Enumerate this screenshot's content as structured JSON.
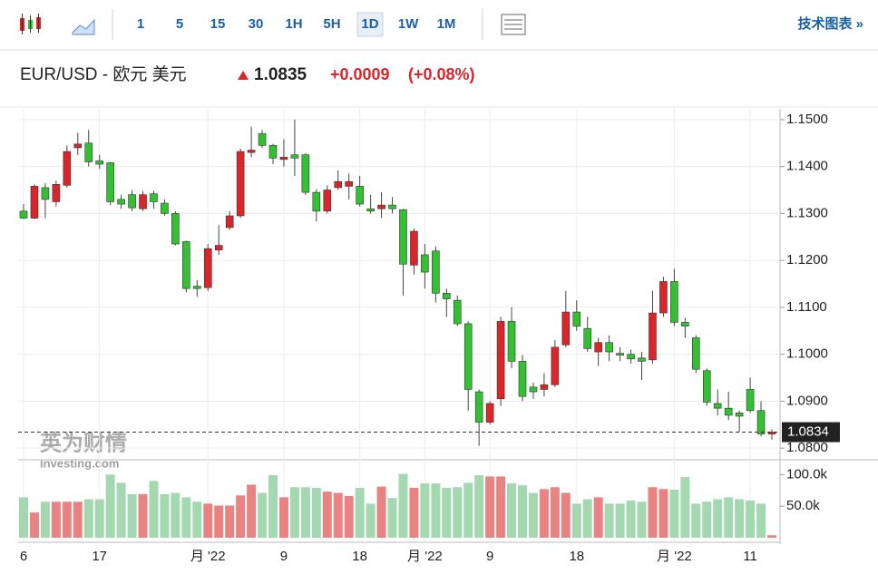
{
  "toolbar": {
    "intervals": [
      "1",
      "5",
      "15",
      "30",
      "1H",
      "5H",
      "1D",
      "1W",
      "1M"
    ],
    "active": "1D",
    "technical": "技术图表 »"
  },
  "header": {
    "symbol": "EUR/USD - 欧元 美元",
    "price": "1.0835",
    "change": "+0.0009",
    "change_pct": "(+0.08%)"
  },
  "watermark": {
    "cn": "英为财情",
    "en": "Investing.com"
  },
  "chart_data": {
    "type": "candlestick",
    "up_color": "#d9262b",
    "down_color": "#33c033",
    "volume_up_color": "#e98383",
    "volume_down_color": "#a3d8b0",
    "categories": [
      "6",
      null,
      null,
      null,
      null,
      null,
      null,
      "17",
      null,
      null,
      null,
      null,
      null,
      null,
      null,
      null,
      null,
      "月 '22",
      null,
      null,
      null,
      null,
      null,
      null,
      "9",
      null,
      null,
      null,
      null,
      null,
      null,
      "18",
      null,
      null,
      null,
      null,
      null,
      "月 '22",
      null,
      null,
      null,
      null,
      null,
      "9",
      null,
      null,
      null,
      null,
      null,
      null,
      null,
      "18",
      null,
      null,
      null,
      null,
      null,
      null,
      null,
      null,
      "月 '22",
      null,
      null,
      null,
      null,
      null,
      null,
      "11",
      null,
      null
    ],
    "open": [
      1.1305,
      1.129,
      1.1355,
      1.1325,
      1.136,
      1.144,
      1.145,
      1.1412,
      1.1408,
      1.133,
      1.134,
      1.131,
      1.1342,
      1.1322,
      1.13,
      1.124,
      1.1145,
      1.1142,
      1.1222,
      1.127,
      1.1295,
      1.143,
      1.147,
      1.1445,
      1.1415,
      1.1425,
      1.1425,
      1.1345,
      1.1305,
      1.1355,
      1.1358,
      1.1358,
      1.131,
      1.131,
      1.1318,
      1.1308,
      1.119,
      1.1212,
      1.122,
      1.113,
      1.1115,
      1.1065,
      1.092,
      1.0855,
      1.0905,
      1.107,
      1.0985,
      1.093,
      1.0925,
      1.0935,
      1.102,
      1.109,
      1.1055,
      1.1005,
      1.1025,
      1.1002,
      1.1,
      1.0992,
      1.0988,
      1.1088,
      1.1155,
      1.1068,
      1.1035,
      1.0965,
      1.0895,
      1.0885,
      1.0875,
      1.0925,
      1.088,
      1.083
    ],
    "high": [
      1.132,
      1.1362,
      1.1365,
      1.137,
      1.1445,
      1.1472,
      1.1478,
      1.1425,
      1.141,
      1.134,
      1.135,
      1.1348,
      1.1348,
      1.133,
      1.1305,
      1.1242,
      1.1158,
      1.1235,
      1.1275,
      1.1305,
      1.1438,
      1.1485,
      1.1478,
      1.1448,
      1.1458,
      1.15,
      1.1428,
      1.1352,
      1.136,
      1.1392,
      1.1385,
      1.138,
      1.134,
      1.1345,
      1.1335,
      1.131,
      1.1268,
      1.1235,
      1.123,
      1.114,
      1.1125,
      1.107,
      1.0925,
      1.09,
      1.108,
      1.11,
      1.0998,
      1.094,
      1.096,
      1.103,
      1.1135,
      1.1115,
      1.108,
      1.1035,
      1.104,
      1.1015,
      1.101,
      1.1005,
      1.1135,
      1.1165,
      1.1182,
      1.1078,
      1.104,
      1.097,
      1.0925,
      1.092,
      1.088,
      1.095,
      1.09,
      1.084
    ],
    "low": [
      1.1288,
      1.1288,
      1.129,
      1.1315,
      1.1355,
      1.1425,
      1.14,
      1.1395,
      1.1318,
      1.131,
      1.1305,
      1.1305,
      1.131,
      1.1295,
      1.1232,
      1.1132,
      1.1122,
      1.1135,
      1.1212,
      1.1265,
      1.129,
      1.142,
      1.144,
      1.1405,
      1.14,
      1.138,
      1.134,
      1.1283,
      1.13,
      1.135,
      1.133,
      1.1315,
      1.13,
      1.129,
      1.13,
      1.1125,
      1.117,
      1.114,
      1.111,
      1.108,
      1.106,
      1.088,
      1.0805,
      1.085,
      1.089,
      1.097,
      1.09,
      1.0905,
      1.091,
      1.093,
      1.1015,
      1.105,
      1.1005,
      1.0975,
      1.0985,
      1.0985,
      1.098,
      1.0945,
      1.098,
      1.108,
      1.106,
      1.1035,
      1.096,
      1.089,
      1.087,
      1.086,
      1.0835,
      1.0875,
      1.0825,
      1.0818
    ],
    "close": [
      1.129,
      1.1358,
      1.133,
      1.1362,
      1.1432,
      1.1448,
      1.141,
      1.1405,
      1.1325,
      1.132,
      1.1312,
      1.134,
      1.1325,
      1.13,
      1.1235,
      1.114,
      1.114,
      1.1225,
      1.1232,
      1.1295,
      1.1432,
      1.1435,
      1.1445,
      1.1418,
      1.142,
      1.1418,
      1.1345,
      1.1305,
      1.135,
      1.1368,
      1.1368,
      1.132,
      1.1305,
      1.1318,
      1.131,
      1.1192,
      1.1262,
      1.1175,
      1.113,
      1.1118,
      1.1065,
      1.0925,
      1.0855,
      1.0895,
      1.107,
      1.0985,
      1.091,
      1.092,
      1.0935,
      1.1015,
      1.109,
      1.106,
      1.1012,
      1.1025,
      1.1005,
      1.0998,
      1.099,
      1.0985,
      1.1088,
      1.1155,
      1.1068,
      1.106,
      1.0968,
      1.0898,
      1.0885,
      1.087,
      1.0868,
      1.088,
      1.083,
      1.0834
    ],
    "volume": [
      64,
      40,
      57,
      57,
      57,
      57,
      61,
      61,
      100,
      87,
      69,
      69,
      90,
      69,
      71,
      64,
      57,
      54,
      51,
      51,
      67,
      84,
      71,
      99,
      64,
      80,
      80,
      79,
      73,
      71,
      66,
      79,
      54,
      81,
      63,
      101,
      79,
      86,
      86,
      79,
      80,
      87,
      99,
      97,
      97,
      86,
      83,
      71,
      77,
      80,
      71,
      54,
      61,
      64,
      54,
      54,
      59,
      57,
      80,
      77,
      76,
      96,
      54,
      57,
      61,
      64,
      61,
      59,
      54,
      4
    ],
    "ylim": [
      1.0779,
      1.1523
    ],
    "yticks": [
      {
        "value": 1.08,
        "label": "1.0800"
      },
      {
        "value": 1.09,
        "label": "1.0900"
      },
      {
        "value": 1.1,
        "label": "1.1000"
      },
      {
        "value": 1.11,
        "label": "1.1100"
      },
      {
        "value": 1.12,
        "label": "1.1200"
      },
      {
        "value": 1.13,
        "label": "1.1300"
      },
      {
        "value": 1.14,
        "label": "1.1400"
      },
      {
        "value": 1.15,
        "label": "1.1500"
      }
    ],
    "volume_lim": [
      0,
      122
    ],
    "volume_ticks": [
      {
        "value": 50,
        "label": "50.0k"
      },
      {
        "value": 100,
        "label": "100.0k"
      }
    ],
    "last_price": {
      "value": 1.0834,
      "label": "1.0834"
    },
    "grid": true
  }
}
